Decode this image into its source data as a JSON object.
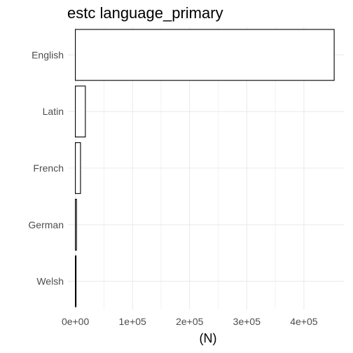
{
  "chart_data": {
    "type": "bar",
    "orientation": "horizontal",
    "title": "estc language_primary",
    "xlabel": "(N)",
    "ylabel": "",
    "categories": [
      "English",
      "Latin",
      "French",
      "German",
      "Welsh"
    ],
    "values": [
      453000,
      17500,
      9000,
      2000,
      1200
    ],
    "xlim": [
      -13000,
      470000
    ],
    "x_ticks": [
      0,
      100000,
      200000,
      300000,
      400000
    ],
    "x_tick_labels": [
      "0e+00",
      "1e+05",
      "2e+05",
      "3e+05",
      "4e+05"
    ],
    "grid": true,
    "colors": {
      "bar_fill": "#ffffff",
      "bar_stroke": "#000000",
      "grid": "#ebebeb"
    }
  }
}
